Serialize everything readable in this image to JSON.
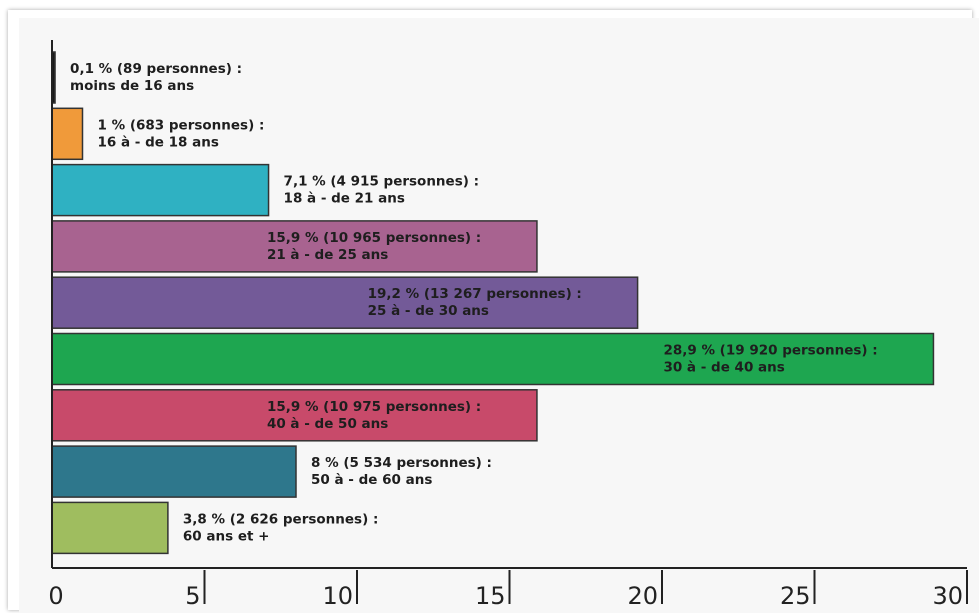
{
  "chart_data": {
    "type": "bar",
    "orientation": "horizontal",
    "categories": [
      "moins de 16 ans",
      "16 à - de 18 ans",
      "18 à - de 21 ans",
      "21 à - de 25 ans",
      "25 à - de 30 ans",
      "30 à - de 40 ans",
      "40 à - de 50 ans",
      "50 à - de 60 ans",
      "60 ans et +"
    ],
    "values": [
      0.1,
      1,
      7.1,
      15.9,
      19.2,
      28.9,
      15.9,
      8,
      3.8
    ],
    "data_labels": [
      "0,1 % (89 personnes) :",
      "1 % (683 personnes) :",
      "7,1 % (4 915 personnes) :",
      "15,9 % (10 965 personnes) :",
      "19,2 % (13 267 personnes) :",
      "28,9 % (19 920 personnes) :",
      "15,9 % (10 975 personnes) :",
      "8 % (5 534 personnes) :",
      "3,8 % (2 626 personnes) :"
    ],
    "colors": [
      "#1a1a1a",
      "#f09a3a",
      "#2fb1c2",
      "#a86390",
      "#735a98",
      "#1ea650",
      "#c84a6a",
      "#2e778c",
      "#9fbd5f"
    ],
    "label_inside": [
      false,
      false,
      false,
      true,
      true,
      true,
      true,
      false,
      false
    ],
    "xlim": [
      0,
      30
    ],
    "xticks": [
      "0",
      "5",
      "10",
      "15",
      "20",
      "25",
      "30"
    ],
    "title": "",
    "xlabel": "",
    "ylabel": "",
    "grid": false,
    "legend": "none"
  }
}
